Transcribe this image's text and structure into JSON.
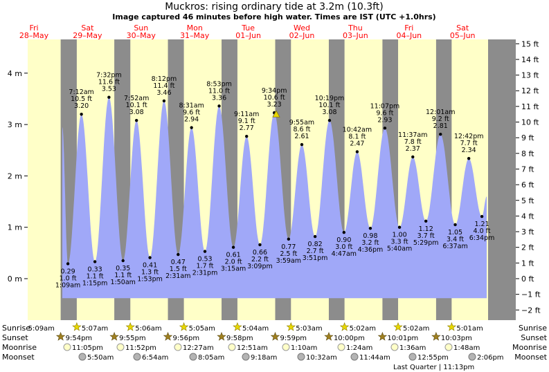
{
  "title": "Muckros: rising  ordinary tide at 3.2m (10.3ft)",
  "subtitle": "Image captured 46 minutes before high water. Times are IST (UTC +1.0hrs)",
  "days": [
    {
      "name": "Fri",
      "date": "28–May"
    },
    {
      "name": "Sat",
      "date": "29–May"
    },
    {
      "name": "Sun",
      "date": "30–May"
    },
    {
      "name": "Mon",
      "date": "31–May"
    },
    {
      "name": "Tue",
      "date": "01–Jun"
    },
    {
      "name": "Wed",
      "date": "02–Jun"
    },
    {
      "name": "Thu",
      "date": "03–Jun"
    },
    {
      "name": "Fri",
      "date": "04–Jun"
    },
    {
      "name": "Sat",
      "date": "05–Jun"
    }
  ],
  "row_labels": {
    "sunrise": "Sunrise",
    "sunset": "Sunset",
    "moonrise": "Moonrise",
    "moonset": "Moonset"
  },
  "sunrise": [
    "5:09am",
    "5:07am",
    "5:06am",
    "5:05am",
    "5:04am",
    "5:03am",
    "5:02am",
    "5:02am",
    "5:01am"
  ],
  "sunset": [
    "9:54pm",
    "9:55pm",
    "9:56pm",
    "9:58pm",
    "9:59pm",
    "10:00pm",
    "10:01pm",
    "10:03pm"
  ],
  "moonrise": [
    "11:05pm",
    "11:52pm",
    "12:27am",
    "12:51am",
    "1:10am",
    "1:24am",
    "1:36am",
    "1:48am"
  ],
  "moonset": [
    "5:50am",
    "6:54am",
    "8:05am",
    "9:18am",
    "10:32am",
    "11:44am",
    "12:55pm",
    "2:06pm"
  ],
  "moon_phase_note": "Last Quarter | 11:13pm",
  "colors": {
    "day": "#ffffc8",
    "night": "#8c8c8c",
    "water": "#a0a8f8",
    "day_label": "#ff0000",
    "marker": "#e8d800"
  },
  "icons": {
    "sun": "sun-star-icon",
    "sunset": "sunset-star-icon",
    "moonrise": "moon-disc-icon",
    "moonset": "moon-disc-icon",
    "current": "triangle-marker-icon"
  },
  "chart_data": {
    "type": "area",
    "x_axis": "time (IST)",
    "ylim_m": [
      -0.6,
      4.5
    ],
    "ylim_ft": [
      -2,
      15
    ],
    "left_ticks": [
      "0 m",
      "1 m",
      "2 m",
      "3 m",
      "4 m"
    ],
    "right_ticks": [
      "−2 ft",
      "−1 ft",
      "0 ft",
      "1 ft",
      "2 ft",
      "3 ft",
      "4 ft",
      "5 ft",
      "6 ft",
      "7 ft",
      "8 ft",
      "9 ft",
      "10 ft",
      "11 ft",
      "12 ft",
      "13 ft",
      "14 ft",
      "15 ft"
    ],
    "current": {
      "level_m": 3.2
    },
    "series": [
      {
        "points": [
          {
            "time": "1:09 am",
            "m": "0.29 m",
            "ft": "1.0 ft",
            "type": "low",
            "date": "29–May",
            "h": 0.29
          },
          {
            "time": "7:12 am",
            "m": "3.20 m",
            "ft": "10.5 ft",
            "type": "high",
            "date": "29–May",
            "h": 3.2
          },
          {
            "time": "1:15 pm",
            "m": "0.33 m",
            "ft": "1.1 ft",
            "type": "low",
            "date": "29–May",
            "h": 0.33
          },
          {
            "time": "7:32 pm",
            "m": "3.53 m",
            "ft": "11.6 ft",
            "type": "high",
            "date": "29–May",
            "h": 3.53
          },
          {
            "time": "1:50 am",
            "m": "0.35 m",
            "ft": "1.1 ft",
            "type": "low",
            "date": "30–May",
            "h": 0.35
          },
          {
            "time": "7:52 am",
            "m": "3.08 m",
            "ft": "10.1 ft",
            "type": "high",
            "date": "30–May",
            "h": 3.08
          },
          {
            "time": "1:53 pm",
            "m": "0.41 m",
            "ft": "1.3 ft",
            "type": "low",
            "date": "30–May",
            "h": 0.41
          },
          {
            "time": "8:12 pm",
            "m": "3.46 m",
            "ft": "11.4 ft",
            "type": "high",
            "date": "30–May",
            "h": 3.46
          },
          {
            "time": "2:31 am",
            "m": "0.47 m",
            "ft": "1.5 ft",
            "type": "low",
            "date": "31–May",
            "h": 0.47
          },
          {
            "time": "8:31 am",
            "m": "2.94 m",
            "ft": "9.6 ft",
            "type": "high",
            "date": "31–May",
            "h": 2.94
          },
          {
            "time": "2:31 pm",
            "m": "0.53 m",
            "ft": "1.7 ft",
            "type": "low",
            "date": "31–May",
            "h": 0.53
          },
          {
            "time": "8:53 pm",
            "m": "3.36 m",
            "ft": "11.0 ft",
            "type": "high",
            "date": "31–May",
            "h": 3.36
          },
          {
            "time": "3:15 am",
            "m": "0.61 m",
            "ft": "2.0 ft",
            "type": "low",
            "date": "01–Jun",
            "h": 0.61
          },
          {
            "time": "9:11 am",
            "m": "2.77 m",
            "ft": "9.1 ft",
            "type": "high",
            "date": "01–Jun",
            "h": 2.77
          },
          {
            "time": "3:09 pm",
            "m": "0.66 m",
            "ft": "2.2 ft",
            "type": "low",
            "date": "01–Jun",
            "h": 0.66
          },
          {
            "time": "9:34 pm",
            "m": "3.23 m",
            "ft": "10.6 ft",
            "type": "high",
            "date": "01–Jun",
            "h": 3.23
          },
          {
            "time": "3:59 am",
            "m": "0.77 m",
            "ft": "2.5 ft",
            "type": "low",
            "date": "02–Jun",
            "h": 0.77
          },
          {
            "time": "9:55 am",
            "m": "2.61 m",
            "ft": "8.6 ft",
            "type": "high",
            "date": "02–Jun",
            "h": 2.61
          },
          {
            "time": "3:51 pm",
            "m": "0.82 m",
            "ft": "2.7 ft",
            "type": "low",
            "date": "02–Jun",
            "h": 0.82
          },
          {
            "time": "10:19 pm",
            "m": "3.08 m",
            "ft": "10.1 ft",
            "type": "high",
            "date": "02–Jun",
            "h": 3.08
          },
          {
            "time": "4:47 am",
            "m": "0.90 m",
            "ft": "3.0 ft",
            "type": "low",
            "date": "03–Jun",
            "h": 0.9
          },
          {
            "time": "10:42 am",
            "m": "2.47 m",
            "ft": "8.1 ft",
            "type": "high",
            "date": "03–Jun",
            "h": 2.47
          },
          {
            "time": "4:36 pm",
            "m": "0.98 m",
            "ft": "3.2 ft",
            "type": "low",
            "date": "03–Jun",
            "h": 0.98
          },
          {
            "time": "11:07 pm",
            "m": "2.93 m",
            "ft": "9.6 ft",
            "type": "high",
            "date": "03–Jun",
            "h": 2.93
          },
          {
            "time": "5:40 am",
            "m": "1.00 m",
            "ft": "3.3 ft",
            "type": "low",
            "date": "04–Jun",
            "h": 1.0
          },
          {
            "time": "11:37 am",
            "m": "2.37 m",
            "ft": "7.8 ft",
            "type": "high",
            "date": "04–Jun",
            "h": 2.37
          },
          {
            "time": "5:29 pm",
            "m": "1.12 m",
            "ft": "3.7 ft",
            "type": "low",
            "date": "04–Jun",
            "h": 1.12
          },
          {
            "time": "12:01 am",
            "m": "2.81 m",
            "ft": "9.2 ft",
            "type": "high",
            "date": "05–Jun",
            "h": 2.81
          },
          {
            "time": "6:37 am",
            "m": "1.05 m",
            "ft": "3.4 ft",
            "type": "low",
            "date": "05–Jun",
            "h": 1.05
          },
          {
            "time": "12:42 pm",
            "m": "2.34 m",
            "ft": "7.7 ft",
            "type": "high",
            "date": "05–Jun",
            "h": 2.34
          },
          {
            "time": "6:34 pm",
            "m": "1.21 m",
            "ft": "4.0 ft",
            "type": "low",
            "date": "05–Jun",
            "h": 1.21
          }
        ]
      }
    ]
  }
}
